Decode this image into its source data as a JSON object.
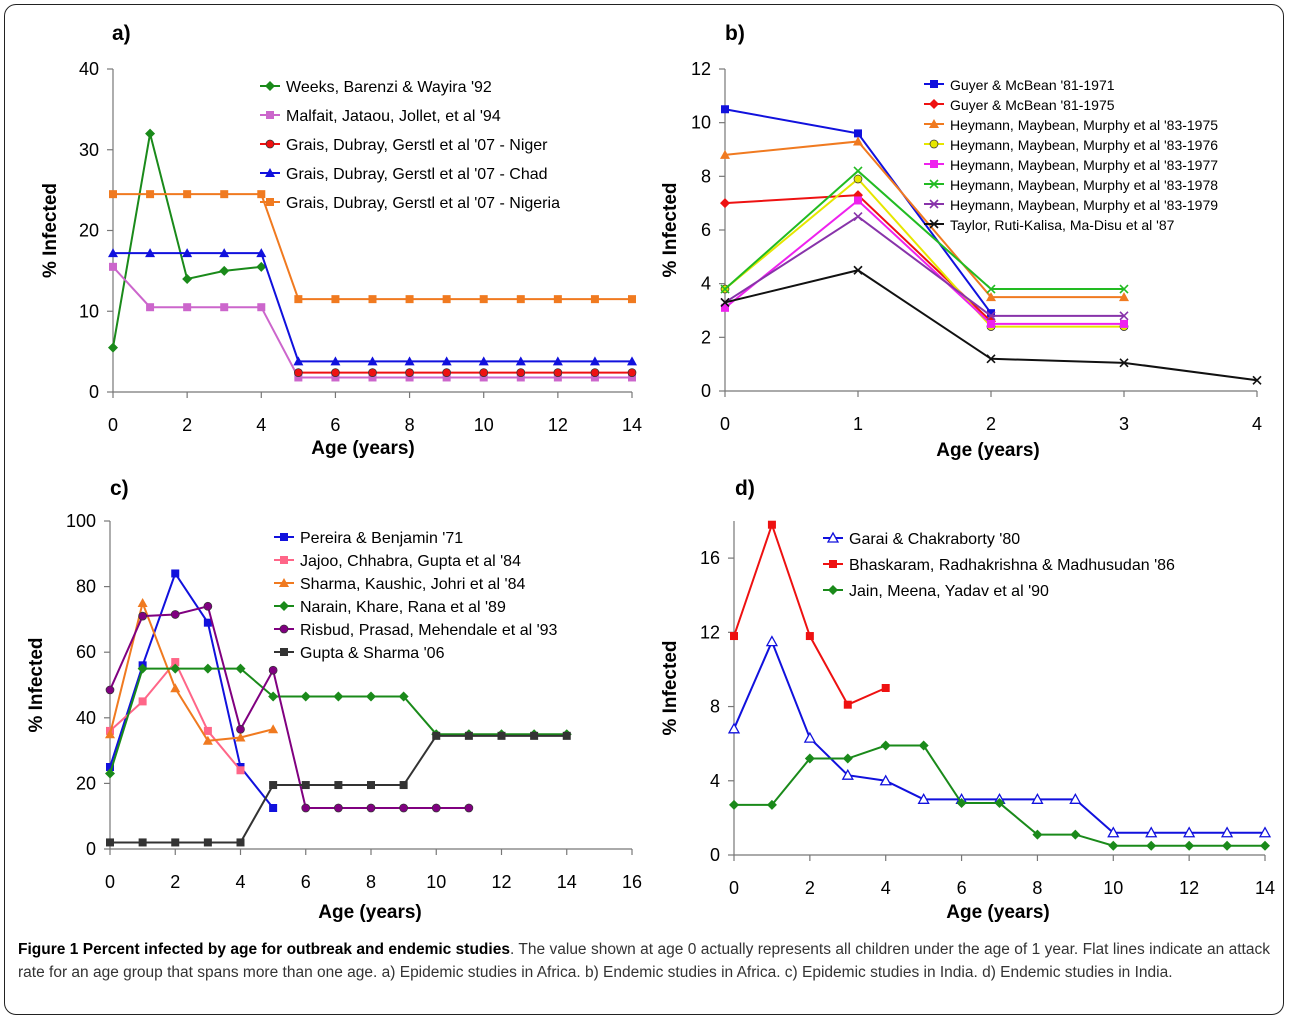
{
  "figure": {
    "caption_title": "Figure 1 Percent infected by age for outbreak and endemic studies",
    "caption_text": ". The value shown at age 0 actually represents all children under the age of 1 year. Flat lines indicate an attack rate for an age group that spans more than one age. a) Epidemic studies in Africa. b) Endemic studies in Africa. c) Epidemic studies in India. d) Endemic studies in India."
  },
  "chart_data": [
    {
      "id": "a",
      "type": "line",
      "panel_label": "a)",
      "xlabel": "Age (years)",
      "ylabel": "% Infected",
      "xlim": [
        0,
        14
      ],
      "ylim": [
        0,
        40
      ],
      "xticks": [
        0,
        2,
        4,
        6,
        8,
        10,
        12,
        14
      ],
      "yticks": [
        0,
        10,
        20,
        30,
        40
      ],
      "grid": false,
      "legend_position": "top-right",
      "series": [
        {
          "name": "Weeks, Barenzi & Wayira '92",
          "color": "#1a8a1a",
          "marker": "diamond",
          "x": [
            0,
            1,
            2,
            3,
            4
          ],
          "y": [
            5.5,
            32,
            14,
            15,
            15.5
          ]
        },
        {
          "name": "Malfait, Jataou, Jollet, et al '94",
          "color": "#cc66cc",
          "marker": "square",
          "x": [
            0,
            1,
            2,
            3,
            4,
            5,
            6,
            7,
            8,
            9,
            10,
            11,
            12,
            13,
            14
          ],
          "y": [
            15.5,
            10.5,
            10.5,
            10.5,
            10.5,
            1.8,
            1.8,
            1.8,
            1.8,
            1.8,
            1.8,
            1.8,
            1.8,
            1.8,
            1.8
          ]
        },
        {
          "name": "Grais, Dubray, Gerstl et al '07 - Niger",
          "color": "#ee1111",
          "marker": "circle",
          "x": [
            5,
            6,
            7,
            8,
            9,
            10,
            11,
            12,
            13,
            14
          ],
          "y": [
            2.4,
            2.4,
            2.4,
            2.4,
            2.4,
            2.4,
            2.4,
            2.4,
            2.4,
            2.4
          ]
        },
        {
          "name": "Grais, Dubray, Gerstl et al '07 - Chad",
          "color": "#1111dd",
          "marker": "triangle",
          "x": [
            0,
            1,
            2,
            3,
            4,
            5,
            6,
            7,
            8,
            9,
            10,
            11,
            12,
            13,
            14
          ],
          "y": [
            17.2,
            17.2,
            17.2,
            17.2,
            17.2,
            3.8,
            3.8,
            3.8,
            3.8,
            3.8,
            3.8,
            3.8,
            3.8,
            3.8,
            3.8
          ]
        },
        {
          "name": "Grais, Dubray, Gerstl et al '07 - Nigeria",
          "color": "#f07a20",
          "marker": "square",
          "x": [
            0,
            1,
            2,
            3,
            4,
            5,
            6,
            7,
            8,
            9,
            10,
            11,
            12,
            13,
            14
          ],
          "y": [
            24.5,
            24.5,
            24.5,
            24.5,
            24.5,
            11.5,
            11.5,
            11.5,
            11.5,
            11.5,
            11.5,
            11.5,
            11.5,
            11.5,
            11.5
          ]
        }
      ]
    },
    {
      "id": "b",
      "type": "line",
      "panel_label": "b)",
      "xlabel": "Age (years)",
      "ylabel": "% Infected",
      "xlim": [
        0,
        4
      ],
      "ylim": [
        0,
        12
      ],
      "xticks": [
        0,
        1,
        2,
        3,
        4
      ],
      "yticks": [
        0,
        2,
        4,
        6,
        8,
        10,
        12
      ],
      "grid": false,
      "legend_position": "top-right",
      "series": [
        {
          "name": "Guyer & McBean '81-1971",
          "color": "#1111dd",
          "marker": "square",
          "x": [
            0,
            1,
            2
          ],
          "y": [
            10.5,
            9.6,
            2.9
          ]
        },
        {
          "name": "Guyer & McBean '81-1975",
          "color": "#ee1111",
          "marker": "diamond",
          "x": [
            0,
            1,
            2
          ],
          "y": [
            7,
            7.3,
            2.6
          ]
        },
        {
          "name": "Heymann, Maybean, Murphy et al '83-1975",
          "color": "#f07a20",
          "marker": "triangle",
          "x": [
            0,
            1,
            2,
            3
          ],
          "y": [
            8.8,
            9.3,
            3.5,
            3.5
          ]
        },
        {
          "name": "Heymann, Maybean, Murphy et al '83-1976",
          "color": "#e6e600",
          "marker": "circle",
          "x": [
            0,
            1,
            2,
            3
          ],
          "y": [
            3.8,
            7.9,
            2.4,
            2.4
          ]
        },
        {
          "name": "Heymann, Maybean, Murphy et al '83-1977",
          "color": "#ee22ee",
          "marker": "square",
          "x": [
            0,
            1,
            2,
            3
          ],
          "y": [
            3.1,
            7.1,
            2.5,
            2.5
          ]
        },
        {
          "name": "Heymann, Maybean, Murphy et al '83-1978",
          "color": "#22bb22",
          "marker": "x",
          "x": [
            0,
            1,
            2,
            3
          ],
          "y": [
            3.8,
            8.2,
            3.8,
            3.8
          ]
        },
        {
          "name": "Heymann, Maybean, Murphy et al '83-1979",
          "color": "#8833aa",
          "marker": "x",
          "x": [
            0,
            1,
            2,
            3
          ],
          "y": [
            3.3,
            6.5,
            2.8,
            2.8
          ]
        },
        {
          "name": "Taylor, Ruti-Kalisa, Ma-Disu et al '87",
          "color": "#111111",
          "marker": "x",
          "x": [
            0,
            1,
            2,
            3,
            4
          ],
          "y": [
            3.3,
            4.5,
            1.2,
            1.05,
            0.4
          ]
        }
      ]
    },
    {
      "id": "c",
      "type": "line",
      "panel_label": "c)",
      "xlabel": "Age (years)",
      "ylabel": "% Infected",
      "xlim": [
        0,
        16
      ],
      "ylim": [
        0,
        100
      ],
      "xticks": [
        0,
        2,
        4,
        6,
        8,
        10,
        12,
        14,
        16
      ],
      "yticks": [
        0,
        20,
        40,
        60,
        80,
        100
      ],
      "grid": false,
      "legend_position": "top-right",
      "series": [
        {
          "name": "Pereira & Benjamin '71",
          "color": "#1111dd",
          "marker": "square",
          "x": [
            0,
            1,
            2,
            3,
            4,
            5
          ],
          "y": [
            25,
            56,
            84,
            69,
            25,
            12.5
          ]
        },
        {
          "name": "Jajoo, Chhabra, Gupta et al '84",
          "color": "#ff6688",
          "marker": "square",
          "x": [
            0,
            1,
            2,
            3,
            4
          ],
          "y": [
            36,
            45,
            57,
            36,
            24
          ]
        },
        {
          "name": "Sharma, Kaushic, Johri et al '84",
          "color": "#f07a20",
          "marker": "triangle",
          "x": [
            0,
            1,
            2,
            3,
            4,
            5
          ],
          "y": [
            35,
            75,
            49,
            33,
            34,
            36.5
          ]
        },
        {
          "name": "Narain, Khare, Rana et al '89",
          "color": "#1a8a1a",
          "marker": "diamond",
          "x": [
            0,
            1,
            2,
            3,
            4,
            5,
            6,
            7,
            8,
            9,
            10,
            11,
            12,
            13,
            14
          ],
          "y": [
            23,
            55,
            55,
            55,
            55,
            46.5,
            46.5,
            46.5,
            46.5,
            46.5,
            35,
            35,
            35,
            35,
            35
          ]
        },
        {
          "name": "Risbud, Prasad, Mehendale et al '93",
          "color": "#800080",
          "marker": "circle",
          "x": [
            0,
            1,
            2,
            3,
            4,
            5,
            6,
            7,
            8,
            9,
            10,
            11
          ],
          "y": [
            48.5,
            71,
            71.5,
            74,
            36.5,
            54.5,
            12.5,
            12.5,
            12.5,
            12.5,
            12.5,
            12.5
          ]
        },
        {
          "name": "Gupta & Sharma '06",
          "color": "#333333",
          "marker": "square",
          "x": [
            0,
            1,
            2,
            3,
            4,
            5,
            6,
            7,
            8,
            9,
            10,
            11,
            12,
            13,
            14
          ],
          "y": [
            2,
            2,
            2,
            2,
            2,
            19.5,
            19.5,
            19.5,
            19.5,
            19.5,
            34.5,
            34.5,
            34.5,
            34.5,
            34.5
          ]
        }
      ]
    },
    {
      "id": "d",
      "type": "line",
      "panel_label": "d)",
      "xlabel": "Age (years)",
      "ylabel": "% Infected",
      "xlim": [
        0,
        14
      ],
      "ylim": [
        0,
        18
      ],
      "xticks": [
        0,
        2,
        4,
        6,
        8,
        10,
        12,
        14
      ],
      "yticks": [
        0,
        4,
        8,
        12,
        16
      ],
      "grid": false,
      "legend_position": "top-right",
      "series": [
        {
          "name": "Garai & Chakraborty '80",
          "color": "#1111dd",
          "marker": "triangle-open",
          "x": [
            0,
            1,
            2,
            3,
            4,
            5,
            6,
            7,
            8,
            9,
            10,
            11,
            12,
            13,
            14
          ],
          "y": [
            6.8,
            11.5,
            6.3,
            4.3,
            4,
            3,
            3,
            3,
            3,
            3,
            1.2,
            1.2,
            1.2,
            1.2,
            1.2
          ]
        },
        {
          "name": "Bhaskaram, Radhakrishna & Madhusudan '86",
          "color": "#ee1111",
          "marker": "square",
          "x": [
            0,
            1,
            2,
            3,
            4
          ],
          "y": [
            11.8,
            17.8,
            11.8,
            8.1,
            9
          ]
        },
        {
          "name": "Jain, Meena, Yadav et al '90",
          "color": "#1a8a1a",
          "marker": "diamond",
          "x": [
            0,
            1,
            2,
            3,
            4,
            5,
            6,
            7,
            8,
            9,
            10,
            11,
            12,
            13,
            14
          ],
          "y": [
            2.7,
            2.7,
            5.2,
            5.2,
            5.9,
            5.9,
            2.8,
            2.8,
            1.1,
            1.1,
            0.5,
            0.5,
            0.5,
            0.5,
            0.5
          ]
        }
      ]
    }
  ]
}
